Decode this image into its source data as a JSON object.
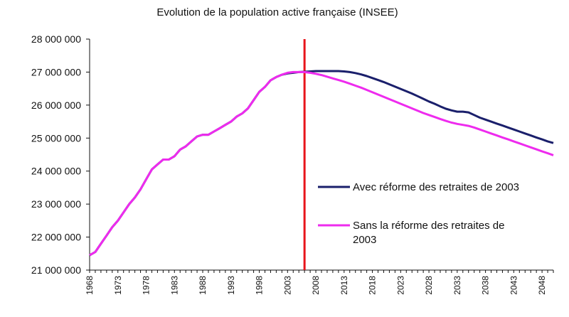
{
  "chart_data": {
    "type": "line",
    "title": "Evolution de la population active française (INSEE)",
    "xlabel": "",
    "ylabel": "",
    "xlim": [
      1968,
      2050
    ],
    "ylim": [
      21000000,
      28000000
    ],
    "y_ticks": [
      21000000,
      22000000,
      23000000,
      24000000,
      25000000,
      26000000,
      27000000,
      28000000
    ],
    "y_tick_labels": [
      "21 000 000",
      "22 000 000",
      "23 000 000",
      "24 000 000",
      "25 000 000",
      "26 000 000",
      "27 000 000",
      "28 000 000"
    ],
    "x_tick_labels": [
      "1968",
      "1973",
      "1978",
      "1983",
      "1988",
      "1993",
      "1998",
      "2003",
      "2008",
      "2013",
      "2018",
      "2023",
      "2028",
      "2033",
      "2038",
      "2043",
      "2048"
    ],
    "grid": false,
    "legend_position": "right",
    "vertical_marker": {
      "x": 2006,
      "color": "#e8141b"
    },
    "series": [
      {
        "name": "Avec réforme des retraites de 2003",
        "color": "#1a1f6b",
        "points": [
          [
            1968,
            21450000
          ],
          [
            1969,
            21550000
          ],
          [
            1970,
            21800000
          ],
          [
            1971,
            22050000
          ],
          [
            1972,
            22300000
          ],
          [
            1973,
            22500000
          ],
          [
            1974,
            22750000
          ],
          [
            1975,
            23000000
          ],
          [
            1976,
            23200000
          ],
          [
            1977,
            23450000
          ],
          [
            1978,
            23750000
          ],
          [
            1979,
            24050000
          ],
          [
            1980,
            24200000
          ],
          [
            1981,
            24350000
          ],
          [
            1982,
            24350000
          ],
          [
            1983,
            24450000
          ],
          [
            1984,
            24650000
          ],
          [
            1985,
            24750000
          ],
          [
            1986,
            24900000
          ],
          [
            1987,
            25050000
          ],
          [
            1988,
            25100000
          ],
          [
            1989,
            25100000
          ],
          [
            1990,
            25200000
          ],
          [
            1991,
            25300000
          ],
          [
            1992,
            25400000
          ],
          [
            1993,
            25500000
          ],
          [
            1994,
            25650000
          ],
          [
            1995,
            25750000
          ],
          [
            1996,
            25900000
          ],
          [
            1997,
            26150000
          ],
          [
            1998,
            26400000
          ],
          [
            1999,
            26550000
          ],
          [
            2000,
            26750000
          ],
          [
            2001,
            26850000
          ],
          [
            2002,
            26920000
          ],
          [
            2003,
            26960000
          ],
          [
            2004,
            26980000
          ],
          [
            2005,
            27000000
          ],
          [
            2006,
            27010000
          ],
          [
            2007,
            27020000
          ],
          [
            2008,
            27030000
          ],
          [
            2009,
            27030000
          ],
          [
            2010,
            27030000
          ],
          [
            2011,
            27030000
          ],
          [
            2012,
            27030000
          ],
          [
            2013,
            27020000
          ],
          [
            2014,
            27000000
          ],
          [
            2015,
            26970000
          ],
          [
            2016,
            26930000
          ],
          [
            2017,
            26880000
          ],
          [
            2018,
            26820000
          ],
          [
            2019,
            26760000
          ],
          [
            2020,
            26700000
          ],
          [
            2021,
            26630000
          ],
          [
            2022,
            26560000
          ],
          [
            2023,
            26490000
          ],
          [
            2024,
            26420000
          ],
          [
            2025,
            26350000
          ],
          [
            2026,
            26270000
          ],
          [
            2027,
            26190000
          ],
          [
            2028,
            26110000
          ],
          [
            2029,
            26040000
          ],
          [
            2030,
            25960000
          ],
          [
            2031,
            25890000
          ],
          [
            2032,
            25840000
          ],
          [
            2033,
            25800000
          ],
          [
            2034,
            25800000
          ],
          [
            2035,
            25780000
          ],
          [
            2036,
            25700000
          ],
          [
            2037,
            25620000
          ],
          [
            2038,
            25560000
          ],
          [
            2039,
            25500000
          ],
          [
            2040,
            25440000
          ],
          [
            2041,
            25380000
          ],
          [
            2042,
            25320000
          ],
          [
            2043,
            25260000
          ],
          [
            2044,
            25200000
          ],
          [
            2045,
            25140000
          ],
          [
            2046,
            25080000
          ],
          [
            2047,
            25020000
          ],
          [
            2048,
            24960000
          ],
          [
            2049,
            24900000
          ],
          [
            2050,
            24850000
          ]
        ]
      },
      {
        "name": "Sans la réforme des retraites de 2003",
        "color": "#ee2bee",
        "points": [
          [
            1968,
            21450000
          ],
          [
            1969,
            21550000
          ],
          [
            1970,
            21800000
          ],
          [
            1971,
            22050000
          ],
          [
            1972,
            22300000
          ],
          [
            1973,
            22500000
          ],
          [
            1974,
            22750000
          ],
          [
            1975,
            23000000
          ],
          [
            1976,
            23200000
          ],
          [
            1977,
            23450000
          ],
          [
            1978,
            23750000
          ],
          [
            1979,
            24050000
          ],
          [
            1980,
            24200000
          ],
          [
            1981,
            24350000
          ],
          [
            1982,
            24350000
          ],
          [
            1983,
            24450000
          ],
          [
            1984,
            24650000
          ],
          [
            1985,
            24750000
          ],
          [
            1986,
            24900000
          ],
          [
            1987,
            25050000
          ],
          [
            1988,
            25100000
          ],
          [
            1989,
            25100000
          ],
          [
            1990,
            25200000
          ],
          [
            1991,
            25300000
          ],
          [
            1992,
            25400000
          ],
          [
            1993,
            25500000
          ],
          [
            1994,
            25650000
          ],
          [
            1995,
            25750000
          ],
          [
            1996,
            25900000
          ],
          [
            1997,
            26150000
          ],
          [
            1998,
            26400000
          ],
          [
            1999,
            26550000
          ],
          [
            2000,
            26750000
          ],
          [
            2001,
            26850000
          ],
          [
            2002,
            26920000
          ],
          [
            2003,
            26980000
          ],
          [
            2004,
            27000000
          ],
          [
            2005,
            27000000
          ],
          [
            2006,
            27000000
          ],
          [
            2007,
            26980000
          ],
          [
            2008,
            26950000
          ],
          [
            2009,
            26910000
          ],
          [
            2010,
            26860000
          ],
          [
            2011,
            26810000
          ],
          [
            2012,
            26760000
          ],
          [
            2013,
            26710000
          ],
          [
            2014,
            26650000
          ],
          [
            2015,
            26590000
          ],
          [
            2016,
            26530000
          ],
          [
            2017,
            26460000
          ],
          [
            2018,
            26390000
          ],
          [
            2019,
            26320000
          ],
          [
            2020,
            26250000
          ],
          [
            2021,
            26180000
          ],
          [
            2022,
            26110000
          ],
          [
            2023,
            26040000
          ],
          [
            2024,
            25970000
          ],
          [
            2025,
            25900000
          ],
          [
            2026,
            25830000
          ],
          [
            2027,
            25760000
          ],
          [
            2028,
            25700000
          ],
          [
            2029,
            25640000
          ],
          [
            2030,
            25580000
          ],
          [
            2031,
            25520000
          ],
          [
            2032,
            25470000
          ],
          [
            2033,
            25430000
          ],
          [
            2034,
            25400000
          ],
          [
            2035,
            25370000
          ],
          [
            2036,
            25320000
          ],
          [
            2037,
            25260000
          ],
          [
            2038,
            25200000
          ],
          [
            2039,
            25140000
          ],
          [
            2040,
            25080000
          ],
          [
            2041,
            25020000
          ],
          [
            2042,
            24960000
          ],
          [
            2043,
            24900000
          ],
          [
            2044,
            24840000
          ],
          [
            2045,
            24780000
          ],
          [
            2046,
            24720000
          ],
          [
            2047,
            24660000
          ],
          [
            2048,
            24600000
          ],
          [
            2049,
            24540000
          ],
          [
            2050,
            24480000
          ]
        ]
      }
    ],
    "legend_lines": [
      [
        "Avec réforme des retraites de 2003"
      ],
      [
        "Sans la réforme des retraites de",
        "2003"
      ]
    ]
  }
}
